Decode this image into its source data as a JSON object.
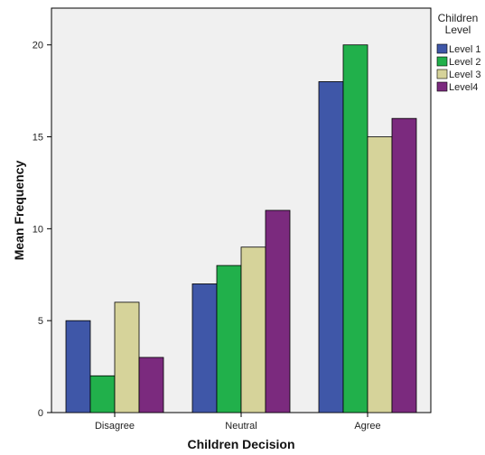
{
  "chart_data": {
    "type": "bar",
    "title": "",
    "xlabel": "Children Decision",
    "ylabel": "Mean Frequency",
    "categories": [
      "Disagree",
      "Neutral",
      "Agree"
    ],
    "ylim": [
      0,
      22
    ],
    "yticks": [
      0,
      5,
      10,
      15,
      20
    ],
    "grid": false,
    "legend": {
      "title_lines": [
        "Children",
        "Level"
      ],
      "placement": "right"
    },
    "series": [
      {
        "name": "Level 1",
        "color": "#3f57a8",
        "values": [
          5,
          7,
          18
        ]
      },
      {
        "name": "Level 2",
        "color": "#21b04b",
        "values": [
          2,
          8,
          20
        ]
      },
      {
        "name": "Level 3",
        "color": "#d6d39a",
        "values": [
          6,
          9,
          15
        ]
      },
      {
        "name": "Level4",
        "color": "#7b2a7e",
        "values": [
          3,
          11,
          16
        ]
      }
    ],
    "colors": {
      "plot_background": "#f0f0f0",
      "bar_outline": "#000000"
    }
  }
}
